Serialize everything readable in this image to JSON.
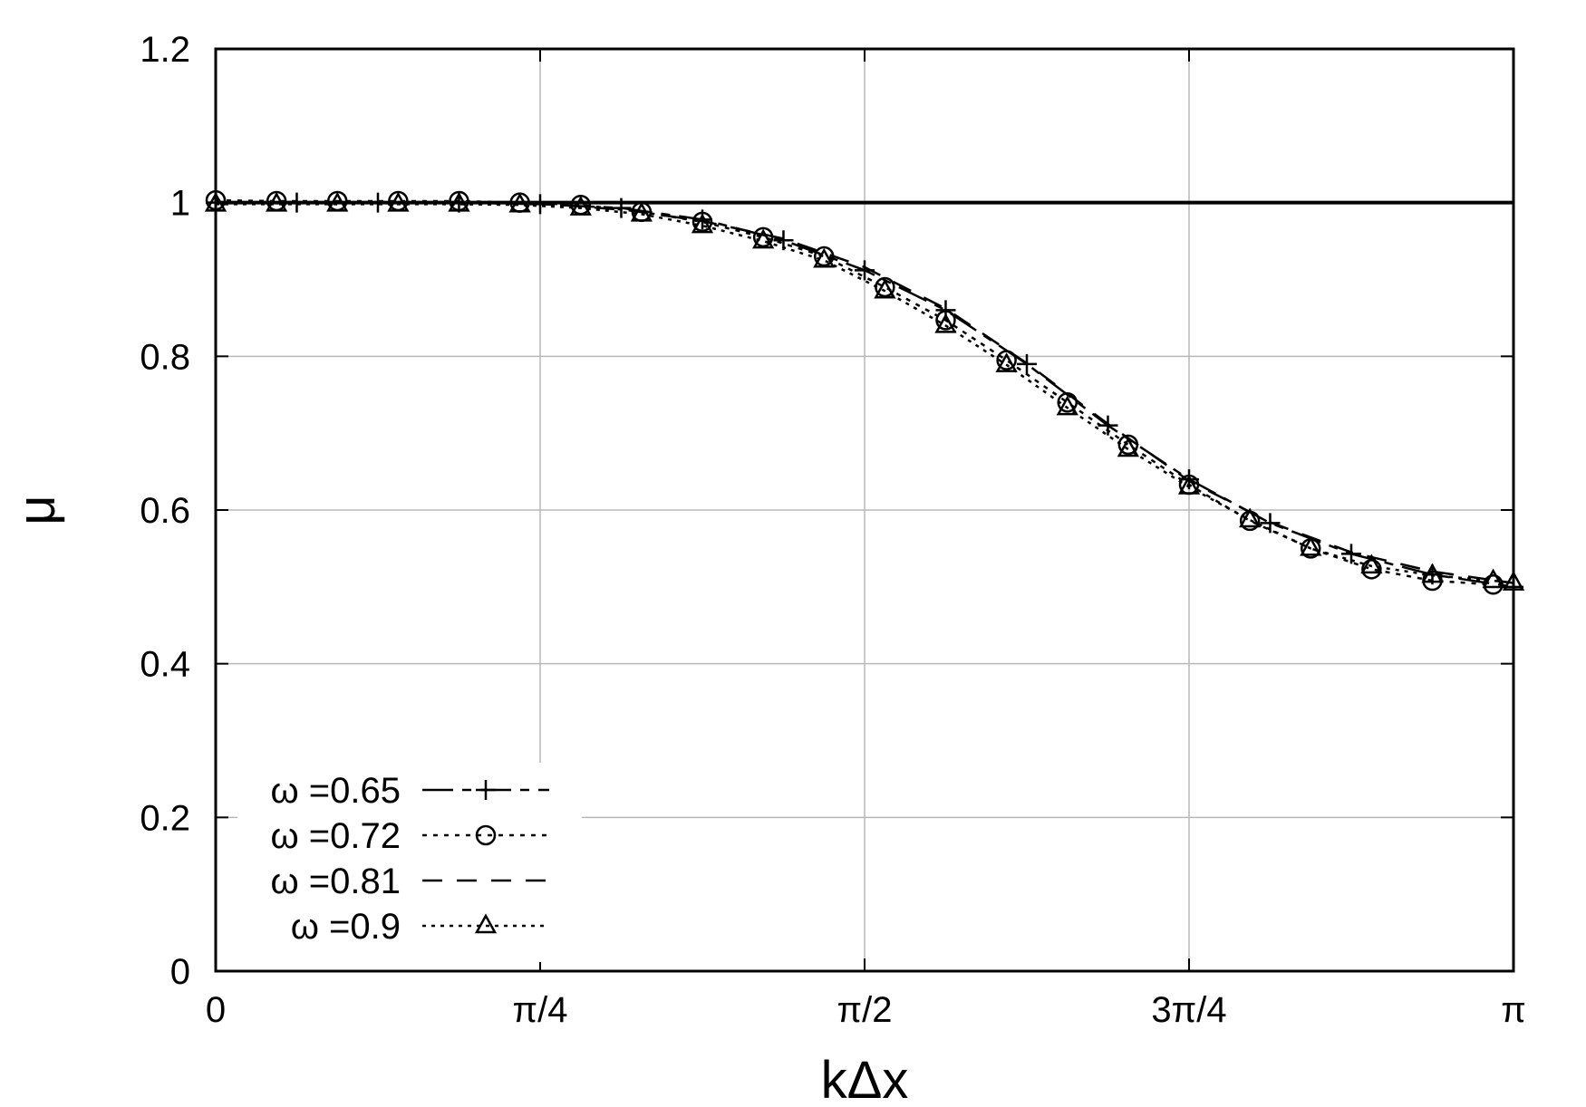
{
  "chart_data": {
    "type": "line",
    "xlabel": "kΔx",
    "ylabel": "μ",
    "xlim": [
      0,
      3.14159
    ],
    "ylim": [
      0,
      1.2
    ],
    "grid": true,
    "legend_position": "bottom-left",
    "x_ticks": [
      {
        "value": 0,
        "label": "0"
      },
      {
        "value": 0.785398,
        "label": "π/4"
      },
      {
        "value": 1.570796,
        "label": "π/2"
      },
      {
        "value": 2.356194,
        "label": "3π/4"
      },
      {
        "value": 3.14159,
        "label": "π"
      }
    ],
    "y_ticks": [
      {
        "value": 0,
        "label": "0"
      },
      {
        "value": 0.2,
        "label": "0.2"
      },
      {
        "value": 0.4,
        "label": "0.4"
      },
      {
        "value": 0.6,
        "label": "0.6"
      },
      {
        "value": 0.8,
        "label": "0.8"
      },
      {
        "value": 1.0,
        "label": "1"
      },
      {
        "value": 1.2,
        "label": "1.2"
      }
    ],
    "reference_line": {
      "y": 1.0
    },
    "series": [
      {
        "name": "ω =0.65",
        "marker": "plus",
        "dash": "34 10 10 10",
        "x": [
          0,
          0.1963,
          0.3927,
          0.589,
          0.7854,
          0.9817,
          1.1781,
          1.3744,
          1.5708,
          1.7671,
          1.9635,
          2.1598,
          2.3562,
          2.5525,
          2.7489,
          2.9452,
          3.1416
        ],
        "y": [
          1.0,
          1.0,
          1.0,
          1.0,
          0.998,
          0.993,
          0.978,
          0.951,
          0.912,
          0.86,
          0.79,
          0.71,
          0.64,
          0.583,
          0.543,
          0.516,
          0.5
        ]
      },
      {
        "name": "ω =0.72",
        "marker": "circle",
        "dash": "5 7",
        "x": [
          0,
          0.1473,
          0.2945,
          0.4418,
          0.589,
          0.7363,
          0.8836,
          1.0308,
          1.1781,
          1.3254,
          1.4726,
          1.6199,
          1.7671,
          1.9144,
          2.0617,
          2.2089,
          2.3562,
          2.5035,
          2.6507,
          2.798,
          2.9452,
          3.0925
        ],
        "y": [
          1.003,
          1.002,
          1.002,
          1.002,
          1.002,
          1.0,
          0.997,
          0.988,
          0.975,
          0.955,
          0.93,
          0.89,
          0.847,
          0.795,
          0.74,
          0.685,
          0.633,
          0.586,
          0.55,
          0.523,
          0.508,
          0.503
        ]
      },
      {
        "name": "ω =0.81",
        "marker": "none",
        "dash": "22 16",
        "x": [
          0,
          0.3927,
          0.7854,
          1.0,
          1.1781,
          1.3744,
          1.5708,
          1.7671,
          1.9635,
          2.1598,
          2.3562,
          2.5525,
          2.7489,
          2.9452,
          3.1416
        ],
        "y": [
          1.0,
          1.0,
          0.999,
          0.99,
          0.976,
          0.953,
          0.916,
          0.862,
          0.791,
          0.712,
          0.638,
          0.584,
          0.545,
          0.52,
          0.505
        ]
      },
      {
        "name": "ω =0.9",
        "marker": "triangle",
        "dash": "4 6",
        "x": [
          0,
          0.1473,
          0.2945,
          0.4418,
          0.589,
          0.7363,
          0.8836,
          1.0308,
          1.1781,
          1.3254,
          1.4726,
          1.6199,
          1.7671,
          1.9144,
          2.0617,
          2.2089,
          2.3562,
          2.5035,
          2.6507,
          2.798,
          2.9452,
          3.0925,
          3.1416
        ],
        "y": [
          0.998,
          0.998,
          0.998,
          0.998,
          0.998,
          0.997,
          0.993,
          0.985,
          0.97,
          0.95,
          0.925,
          0.885,
          0.84,
          0.789,
          0.733,
          0.679,
          0.63,
          0.587,
          0.55,
          0.527,
          0.515,
          0.508,
          0.505
        ]
      }
    ]
  }
}
